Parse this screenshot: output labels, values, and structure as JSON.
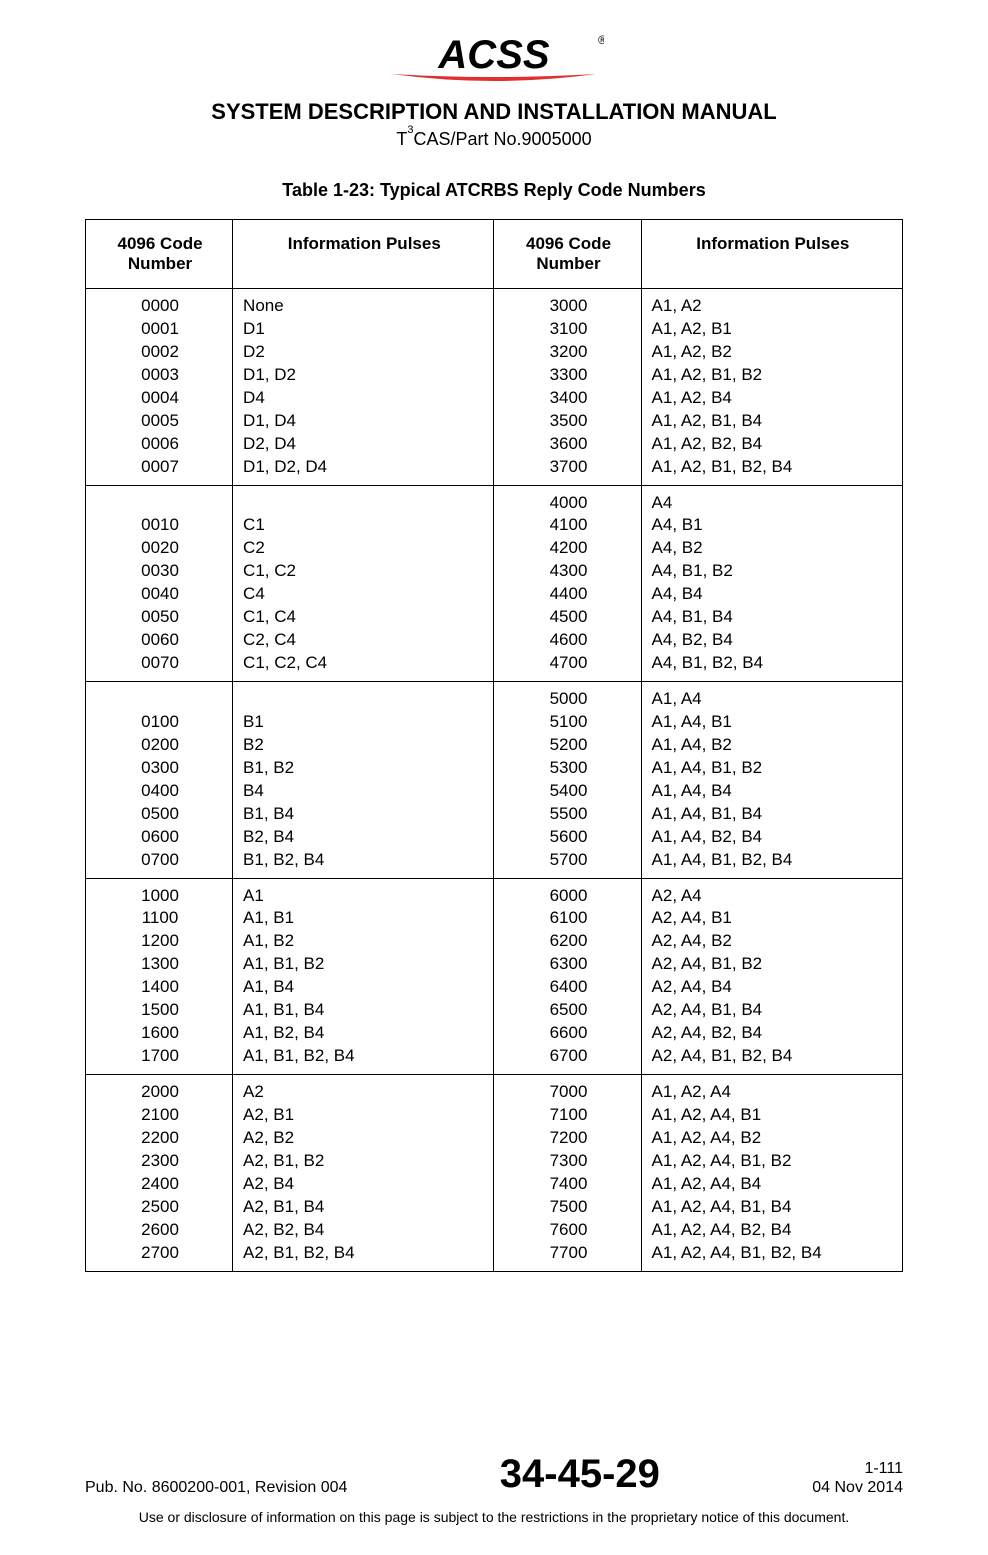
{
  "header": {
    "title": "SYSTEM DESCRIPTION AND INSTALLATION MANUAL",
    "subtitle_prefix": "T",
    "subtitle_sup": "3",
    "subtitle_suffix": "CAS/Part No.9005000",
    "logo_name": "ACSS",
    "logo_colors": {
      "text": "#000000",
      "swoosh": "#e03030",
      "reg": "#000000"
    }
  },
  "caption": "Table 1-23: Typical ATCRBS Reply Code Numbers",
  "table": {
    "border_color": "#000000",
    "background_color": "#ffffff",
    "header_font_weight": "bold",
    "columns": [
      {
        "label": "4096 Code Number",
        "align": "center",
        "width_pct": 18
      },
      {
        "label": "Information Pulses",
        "align": "left",
        "width_pct": 32
      },
      {
        "label": "4096 Code Number",
        "align": "center",
        "width_pct": 18
      },
      {
        "label": "Information Pulses",
        "align": "left",
        "width_pct": 32
      }
    ],
    "groups": [
      {
        "left": [
          [
            "0000",
            "None"
          ],
          [
            "0001",
            "D1"
          ],
          [
            "0002",
            "D2"
          ],
          [
            "0003",
            "D1, D2"
          ],
          [
            "0004",
            "D4"
          ],
          [
            "0005",
            "D1, D4"
          ],
          [
            "0006",
            "D2, D4"
          ],
          [
            "0007",
            "D1, D2, D4"
          ]
        ],
        "right": [
          [
            "3000",
            "A1, A2"
          ],
          [
            "3100",
            "A1, A2, B1"
          ],
          [
            "3200",
            "A1, A2, B2"
          ],
          [
            "3300",
            "A1, A2, B1, B2"
          ],
          [
            "3400",
            "A1, A2, B4"
          ],
          [
            "3500",
            "A1, A2, B1, B4"
          ],
          [
            "3600",
            "A1, A2, B2, B4"
          ],
          [
            "3700",
            "A1, A2, B1, B2, B4"
          ]
        ],
        "left_leading_blank": false,
        "right_leading_blank": false
      },
      {
        "left": [
          [
            "0010",
            "C1"
          ],
          [
            "0020",
            "C2"
          ],
          [
            "0030",
            "C1, C2"
          ],
          [
            "0040",
            "C4"
          ],
          [
            "0050",
            "C1, C4"
          ],
          [
            "0060",
            "C2, C4"
          ],
          [
            "0070",
            "C1, C2, C4"
          ]
        ],
        "right": [
          [
            "4000",
            "A4"
          ],
          [
            "4100",
            "A4, B1"
          ],
          [
            "4200",
            "A4, B2"
          ],
          [
            "4300",
            "A4, B1, B2"
          ],
          [
            "4400",
            "A4, B4"
          ],
          [
            "4500",
            "A4, B1, B4"
          ],
          [
            "4600",
            "A4, B2, B4"
          ],
          [
            "4700",
            "A4, B1, B2, B4"
          ]
        ],
        "left_leading_blank": true,
        "right_leading_blank": false
      },
      {
        "left": [
          [
            "0100",
            "B1"
          ],
          [
            "0200",
            "B2"
          ],
          [
            "0300",
            "B1, B2"
          ],
          [
            "0400",
            "B4"
          ],
          [
            "0500",
            "B1, B4"
          ],
          [
            "0600",
            "B2, B4"
          ],
          [
            "0700",
            "B1, B2, B4"
          ]
        ],
        "right": [
          [
            "5000",
            "A1, A4"
          ],
          [
            "5100",
            "A1, A4, B1"
          ],
          [
            "5200",
            "A1, A4, B2"
          ],
          [
            "5300",
            "A1, A4, B1, B2"
          ],
          [
            "5400",
            "A1, A4, B4"
          ],
          [
            "5500",
            "A1, A4, B1, B4"
          ],
          [
            "5600",
            "A1, A4, B2, B4"
          ],
          [
            "5700",
            "A1, A4, B1, B2, B4"
          ]
        ],
        "left_leading_blank": true,
        "right_leading_blank": false
      },
      {
        "left": [
          [
            "1000",
            "A1"
          ],
          [
            "1100",
            "A1, B1"
          ],
          [
            "1200",
            "A1, B2"
          ],
          [
            "1300",
            "A1, B1, B2"
          ],
          [
            "1400",
            "A1, B4"
          ],
          [
            "1500",
            "A1, B1, B4"
          ],
          [
            "1600",
            "A1, B2, B4"
          ],
          [
            "1700",
            "A1, B1, B2, B4"
          ]
        ],
        "right": [
          [
            "6000",
            "A2, A4"
          ],
          [
            "6100",
            "A2, A4, B1"
          ],
          [
            "6200",
            "A2, A4, B2"
          ],
          [
            "6300",
            "A2, A4, B1, B2"
          ],
          [
            "6400",
            "A2, A4, B4"
          ],
          [
            "6500",
            "A2, A4, B1, B4"
          ],
          [
            "6600",
            "A2, A4, B2, B4"
          ],
          [
            "6700",
            "A2, A4, B1, B2, B4"
          ]
        ],
        "left_leading_blank": false,
        "right_leading_blank": false
      },
      {
        "left": [
          [
            "2000",
            "A2"
          ],
          [
            "2100",
            "A2, B1"
          ],
          [
            "2200",
            "A2, B2"
          ],
          [
            "2300",
            "A2, B1, B2"
          ],
          [
            "2400",
            "A2, B4"
          ],
          [
            "2500",
            "A2, B1, B4"
          ],
          [
            "2600",
            "A2, B2, B4"
          ],
          [
            "2700",
            "A2, B1, B2, B4"
          ]
        ],
        "right": [
          [
            "7000",
            "A1, A2, A4"
          ],
          [
            "7100",
            "A1, A2, A4, B1"
          ],
          [
            "7200",
            "A1, A2, A4, B2"
          ],
          [
            "7300",
            "A1, A2, A4, B1, B2"
          ],
          [
            "7400",
            "A1, A2, A4, B4"
          ],
          [
            "7500",
            "A1, A2, A4, B1, B4"
          ],
          [
            "7600",
            "A1, A2, A4, B2, B4"
          ],
          [
            "7700",
            "A1, A2, A4, B1, B2, B4"
          ]
        ],
        "left_leading_blank": false,
        "right_leading_blank": false
      }
    ]
  },
  "footer": {
    "left": "Pub. No. 8600200-001, Revision 004",
    "center": "34-45-29",
    "right_page": "1-111",
    "right_date": "04 Nov 2014",
    "legal": "Use or disclosure of information on this page is subject to the restrictions in the proprietary notice of this document."
  }
}
